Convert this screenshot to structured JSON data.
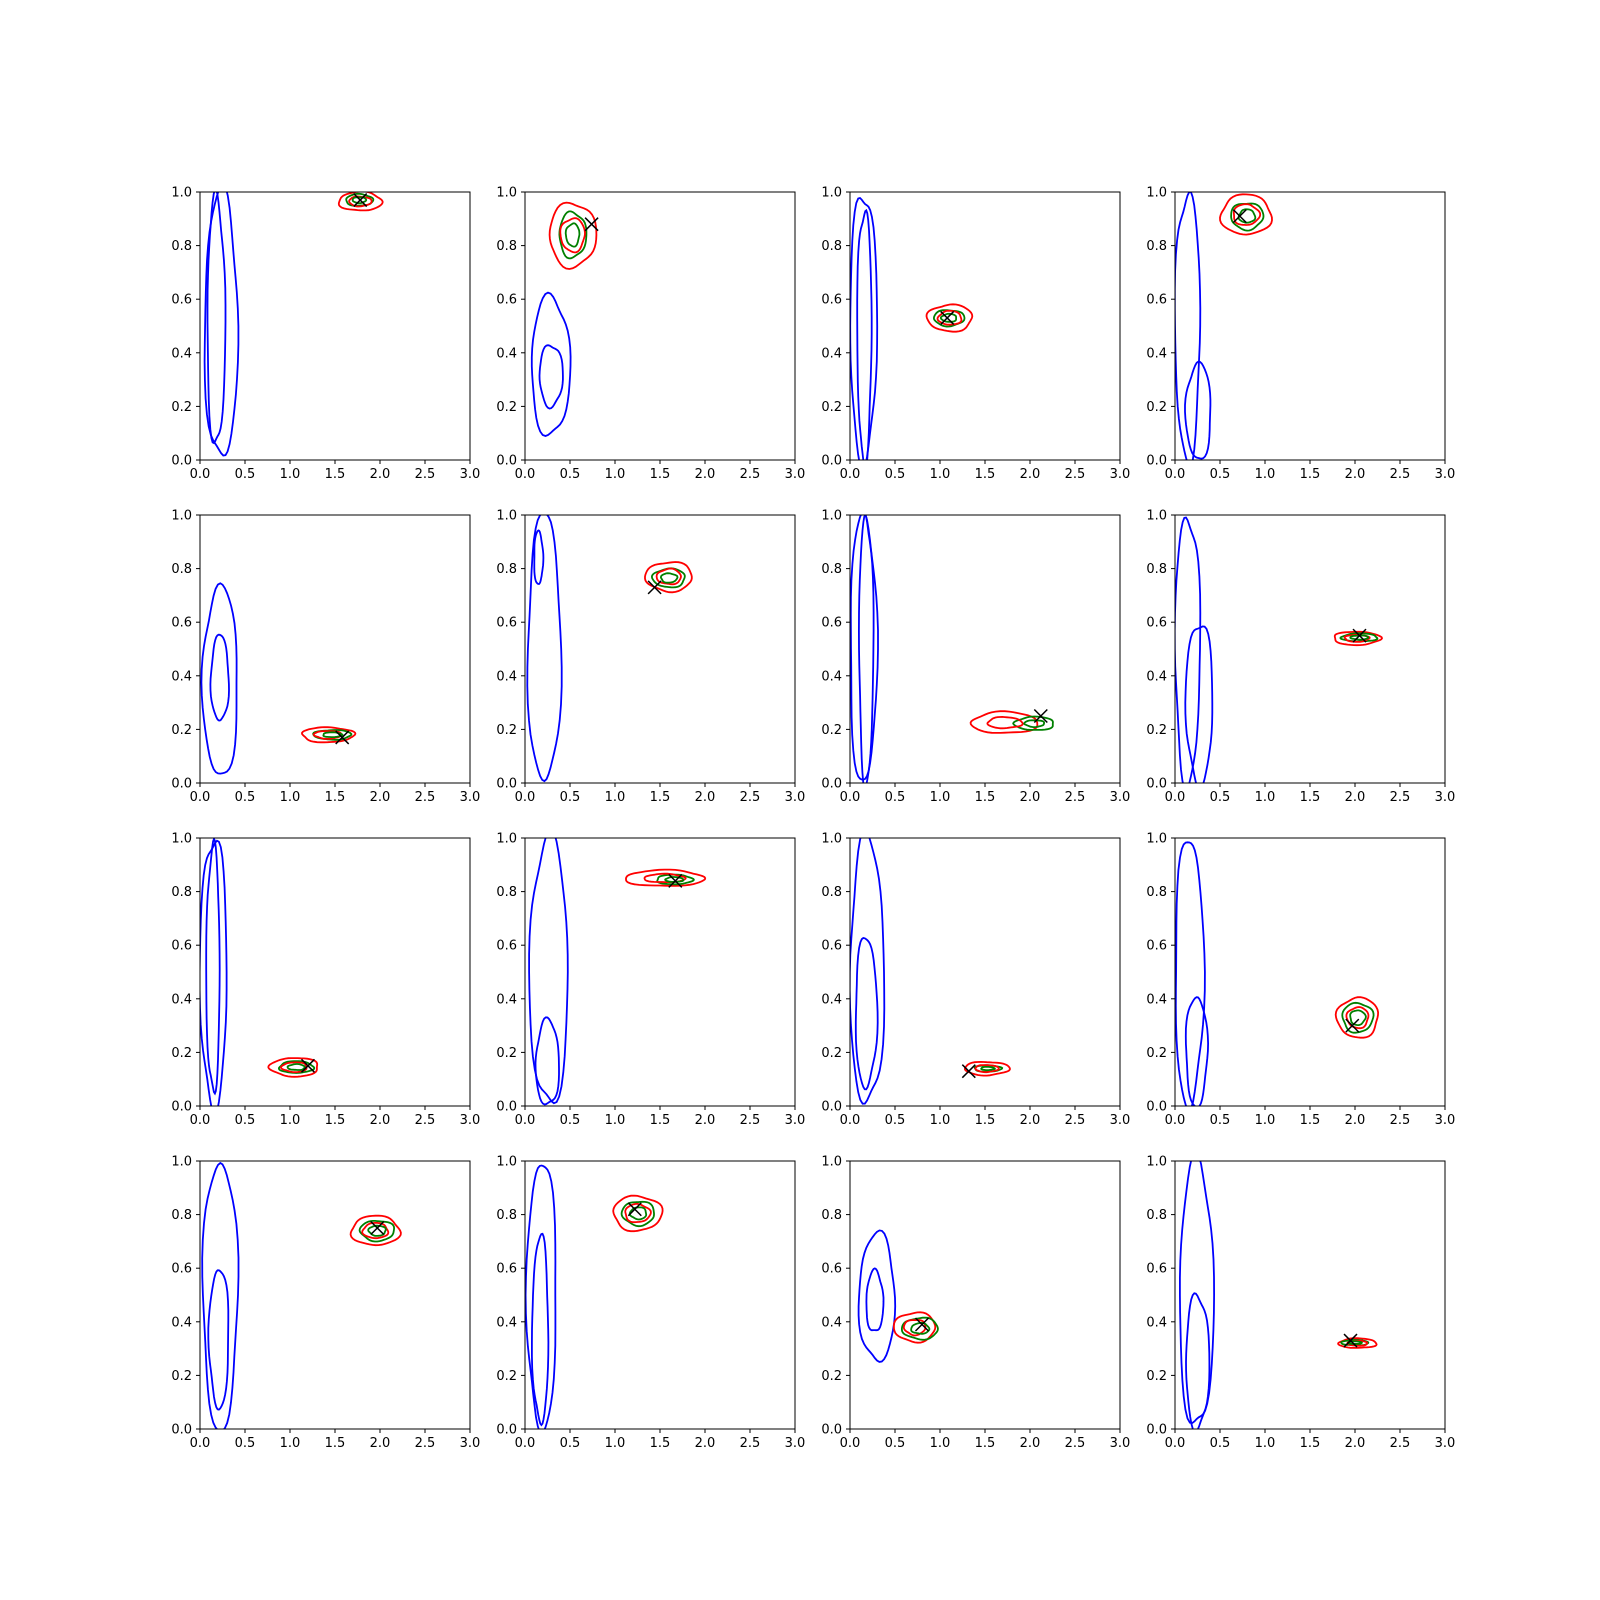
{
  "colors": {
    "prior": "#0000ff",
    "posterior": "#ff0000",
    "approx": "#008000",
    "truth": "#000000"
  },
  "chart_data": {
    "type": "contour",
    "grid": "4x4",
    "xlim": [
      0,
      3
    ],
    "ylim": [
      0,
      1
    ],
    "xticks": [
      "0.0",
      "0.5",
      "1.0",
      "1.5",
      "2.0",
      "2.5",
      "3.0"
    ],
    "yticks": [
      "0.0",
      "0.2",
      "0.4",
      "0.6",
      "0.8",
      "1.0"
    ],
    "grid_lines": false,
    "legend": "none",
    "panels": [
      {
        "truth": [
          1.78,
          0.97
        ],
        "red": {
          "c": [
            1.78,
            0.965
          ],
          "r": [
            0.24,
            0.035
          ]
        },
        "green": {
          "c": [
            1.77,
            0.97
          ],
          "r": [
            0.15,
            0.022
          ]
        },
        "blue": [
          {
            "xmin": 0.05,
            "xmax": 0.42,
            "ymin": 0.0,
            "ymax": 1.0
          },
          {
            "xmin": 0.08,
            "xmax": 0.28,
            "ymin": 0.05,
            "ymax": 0.98
          }
        ]
      },
      {
        "truth": [
          0.74,
          0.88
        ],
        "red": {
          "c": [
            0.53,
            0.84
          ],
          "r": [
            0.26,
            0.12
          ]
        },
        "green": {
          "c": [
            0.53,
            0.84
          ],
          "r": [
            0.15,
            0.085
          ]
        },
        "blue": [
          {
            "xmin": 0.07,
            "xmax": 0.5,
            "ymin": 0.09,
            "ymax": 0.61
          },
          {
            "xmin": 0.16,
            "xmax": 0.42,
            "ymin": 0.2,
            "ymax": 0.43
          }
        ]
      },
      {
        "truth": [
          1.08,
          0.53
        ],
        "red": {
          "c": [
            1.11,
            0.53
          ],
          "r": [
            0.25,
            0.05
          ]
        },
        "green": {
          "c": [
            1.1,
            0.53
          ],
          "r": [
            0.17,
            0.03
          ]
        },
        "blue": [
          {
            "xmin": 0.0,
            "xmax": 0.3,
            "ymin": 0.0,
            "ymax": 1.0
          },
          {
            "xmin": 0.08,
            "xmax": 0.24,
            "ymin": 0.0,
            "ymax": 0.94
          }
        ]
      },
      {
        "truth": [
          0.72,
          0.91
        ],
        "red": {
          "c": [
            0.79,
            0.915
          ],
          "r": [
            0.28,
            0.075
          ]
        },
        "green": {
          "c": [
            0.8,
            0.91
          ],
          "r": [
            0.18,
            0.05
          ]
        },
        "blue": [
          {
            "xmin": 0.0,
            "xmax": 0.28,
            "ymin": 0.0,
            "ymax": 1.0
          },
          {
            "xmin": 0.12,
            "xmax": 0.4,
            "ymin": 0.0,
            "ymax": 0.36
          }
        ]
      },
      {
        "truth": [
          1.58,
          0.17
        ],
        "red": {
          "c": [
            1.42,
            0.18
          ],
          "r": [
            0.29,
            0.028
          ]
        },
        "green": {
          "c": [
            1.47,
            0.18
          ],
          "r": [
            0.21,
            0.018
          ]
        },
        "blue": [
          {
            "xmin": 0.03,
            "xmax": 0.42,
            "ymin": 0.02,
            "ymax": 0.73
          },
          {
            "xmin": 0.12,
            "xmax": 0.32,
            "ymin": 0.23,
            "ymax": 0.55
          }
        ]
      },
      {
        "truth": [
          1.44,
          0.73
        ],
        "red": {
          "c": [
            1.6,
            0.77
          ],
          "r": [
            0.26,
            0.055
          ]
        },
        "green": {
          "c": [
            1.6,
            0.765
          ],
          "r": [
            0.18,
            0.035
          ]
        },
        "blue": [
          {
            "xmin": 0.03,
            "xmax": 0.4,
            "ymin": 0.0,
            "ymax": 1.0
          },
          {
            "xmin": 0.1,
            "xmax": 0.2,
            "ymin": 0.74,
            "ymax": 0.94
          }
        ]
      },
      {
        "truth": [
          2.12,
          0.25
        ],
        "red": {
          "c": [
            1.72,
            0.225
          ],
          "r": [
            0.37,
            0.04
          ]
        },
        "green": {
          "c": [
            2.05,
            0.222
          ],
          "r": [
            0.22,
            0.025
          ]
        },
        "blue": [
          {
            "xmin": 0.0,
            "xmax": 0.3,
            "ymin": 0.0,
            "ymax": 1.0
          },
          {
            "xmin": 0.1,
            "xmax": 0.26,
            "ymin": 0.0,
            "ymax": 1.0
          }
        ]
      },
      {
        "truth": [
          2.05,
          0.55
        ],
        "red": {
          "c": [
            2.02,
            0.54
          ],
          "r": [
            0.26,
            0.025
          ]
        },
        "green": {
          "c": [
            2.05,
            0.543
          ],
          "r": [
            0.2,
            0.015
          ]
        },
        "blue": [
          {
            "xmin": 0.0,
            "xmax": 0.28,
            "ymin": 0.0,
            "ymax": 1.0
          },
          {
            "xmin": 0.12,
            "xmax": 0.42,
            "ymin": 0.0,
            "ymax": 0.6
          }
        ]
      },
      {
        "truth": [
          1.2,
          0.15
        ],
        "red": {
          "c": [
            1.05,
            0.145
          ],
          "r": [
            0.27,
            0.035
          ]
        },
        "green": {
          "c": [
            1.07,
            0.145
          ],
          "r": [
            0.19,
            0.022
          ]
        },
        "blue": [
          {
            "xmin": 0.0,
            "xmax": 0.3,
            "ymin": 0.0,
            "ymax": 1.0
          },
          {
            "xmin": 0.07,
            "xmax": 0.22,
            "ymin": 0.05,
            "ymax": 0.97
          }
        ]
      },
      {
        "truth": [
          1.67,
          0.84
        ],
        "red": {
          "c": [
            1.55,
            0.85
          ],
          "r": [
            0.44,
            0.03
          ]
        },
        "green": {
          "c": [
            1.66,
            0.845
          ],
          "r": [
            0.2,
            0.018
          ]
        },
        "blue": [
          {
            "xmin": 0.05,
            "xmax": 0.48,
            "ymin": 0.0,
            "ymax": 1.0
          },
          {
            "xmin": 0.12,
            "xmax": 0.38,
            "ymin": 0.0,
            "ymax": 0.32
          }
        ]
      },
      {
        "truth": [
          1.32,
          0.13
        ],
        "red": {
          "c": [
            1.52,
            0.14
          ],
          "r": [
            0.25,
            0.025
          ]
        },
        "green": {
          "c": [
            1.53,
            0.14
          ],
          "r": [
            0.15,
            0.012
          ]
        },
        "blue": [
          {
            "xmin": 0.0,
            "xmax": 0.38,
            "ymin": 0.0,
            "ymax": 1.0
          },
          {
            "xmin": 0.06,
            "xmax": 0.3,
            "ymin": 0.07,
            "ymax": 0.63
          }
        ]
      },
      {
        "truth": [
          1.97,
          0.3
        ],
        "red": {
          "c": [
            2.03,
            0.33
          ],
          "r": [
            0.23,
            0.075
          ]
        },
        "green": {
          "c": [
            2.03,
            0.33
          ],
          "r": [
            0.17,
            0.055
          ]
        },
        "blue": [
          {
            "xmin": 0.0,
            "xmax": 0.32,
            "ymin": 0.0,
            "ymax": 1.0
          },
          {
            "xmin": 0.12,
            "xmax": 0.36,
            "ymin": 0.0,
            "ymax": 0.41
          }
        ]
      },
      {
        "truth": [
          1.97,
          0.75
        ],
        "red": {
          "c": [
            1.95,
            0.74
          ],
          "r": [
            0.27,
            0.055
          ]
        },
        "green": {
          "c": [
            1.97,
            0.74
          ],
          "r": [
            0.19,
            0.038
          ]
        },
        "blue": [
          {
            "xmin": 0.03,
            "xmax": 0.42,
            "ymin": 0.0,
            "ymax": 1.0
          },
          {
            "xmin": 0.1,
            "xmax": 0.32,
            "ymin": 0.08,
            "ymax": 0.6
          }
        ]
      },
      {
        "truth": [
          1.22,
          0.82
        ],
        "red": {
          "c": [
            1.25,
            0.805
          ],
          "r": [
            0.27,
            0.065
          ]
        },
        "green": {
          "c": [
            1.26,
            0.805
          ],
          "r": [
            0.18,
            0.045
          ]
        },
        "blue": [
          {
            "xmin": 0.02,
            "xmax": 0.35,
            "ymin": 0.0,
            "ymax": 1.0
          },
          {
            "xmin": 0.08,
            "xmax": 0.26,
            "ymin": 0.02,
            "ymax": 0.72
          }
        ]
      },
      {
        "truth": [
          0.8,
          0.39
        ],
        "red": {
          "c": [
            0.72,
            0.38
          ],
          "r": [
            0.23,
            0.055
          ]
        },
        "green": {
          "c": [
            0.78,
            0.375
          ],
          "r": [
            0.2,
            0.04
          ]
        },
        "blue": [
          {
            "xmin": 0.1,
            "xmax": 0.5,
            "ymin": 0.25,
            "ymax": 0.73
          },
          {
            "xmin": 0.18,
            "xmax": 0.37,
            "ymin": 0.36,
            "ymax": 0.59
          }
        ]
      },
      {
        "truth": [
          1.95,
          0.33
        ],
        "red": {
          "c": [
            2.03,
            0.32
          ],
          "r": [
            0.21,
            0.018
          ]
        },
        "green": {
          "c": [
            2.0,
            0.322
          ],
          "r": [
            0.15,
            0.01
          ]
        },
        "blue": [
          {
            "xmin": 0.05,
            "xmax": 0.43,
            "ymin": 0.0,
            "ymax": 1.0
          },
          {
            "xmin": 0.12,
            "xmax": 0.38,
            "ymin": 0.0,
            "ymax": 0.5
          }
        ]
      }
    ]
  }
}
